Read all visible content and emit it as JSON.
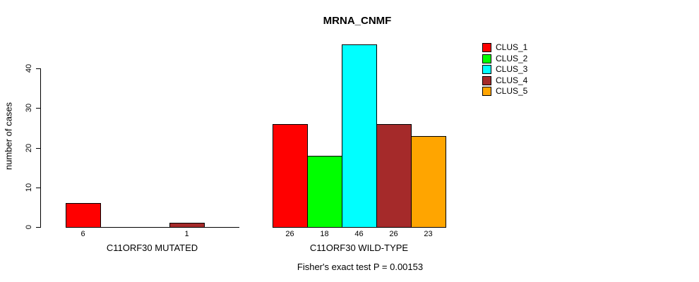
{
  "chart_data": {
    "type": "bar",
    "title": "MRNA_CNMF",
    "ylabel": "number of cases",
    "ylim": [
      0,
      46
    ],
    "yticks": [
      0,
      10,
      20,
      30,
      40
    ],
    "grid": false,
    "legend_position": "top-right",
    "series_labels": [
      "CLUS_1",
      "CLUS_2",
      "CLUS_3",
      "CLUS_4",
      "CLUS_5"
    ],
    "colors": [
      "#ff0000",
      "#00ff00",
      "#00ffff",
      "#a52a2a",
      "#ffa500"
    ],
    "groups": [
      {
        "label": "C11ORF30 MUTATED",
        "values": [
          6,
          0,
          0,
          1,
          0
        ]
      },
      {
        "label": "C11ORF30 WILD-TYPE",
        "values": [
          26,
          18,
          46,
          26,
          23
        ]
      }
    ],
    "annotation": "Fisher's exact test P = 0.00153"
  }
}
